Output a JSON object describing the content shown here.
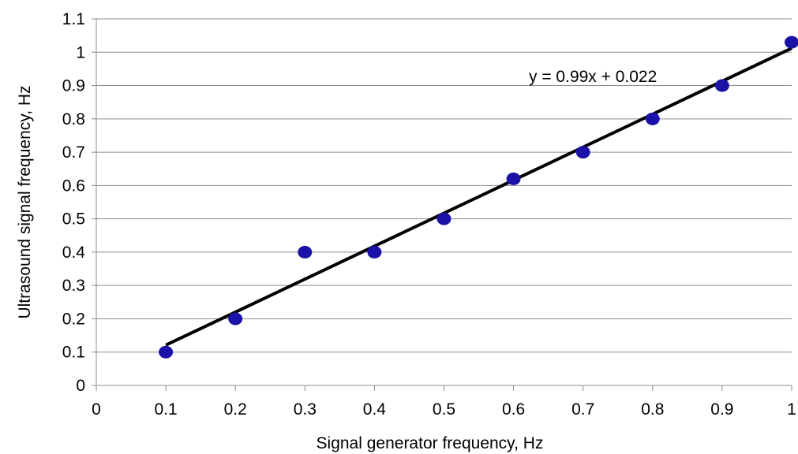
{
  "chart_data": {
    "type": "scatter",
    "xlabel": "Signal generator  frequency, Hz",
    "ylabel": "Ultrasound  signal frequency, Hz",
    "xlim": [
      0,
      1
    ],
    "ylim": [
      0,
      1.1
    ],
    "xticks": [
      "0",
      "0.1",
      "0.2",
      "0.3",
      "0.4",
      "0.5",
      "0.6",
      "0.7",
      "0.8",
      "0.9",
      "1"
    ],
    "yticks": [
      "0",
      "0.1",
      "0.2",
      "0.3",
      "0.4",
      "0.5",
      "0.6",
      "0.7",
      "0.8",
      "0.9",
      "1",
      "1.1"
    ],
    "grid": "horizontal",
    "points": [
      {
        "x": 0.1,
        "y": 0.1
      },
      {
        "x": 0.2,
        "y": 0.2
      },
      {
        "x": 0.3,
        "y": 0.4
      },
      {
        "x": 0.4,
        "y": 0.4
      },
      {
        "x": 0.5,
        "y": 0.5
      },
      {
        "x": 0.6,
        "y": 0.62
      },
      {
        "x": 0.7,
        "y": 0.7
      },
      {
        "x": 0.8,
        "y": 0.8
      },
      {
        "x": 0.9,
        "y": 0.9
      },
      {
        "x": 1.0,
        "y": 1.03
      }
    ],
    "point_color": "#1a12a6",
    "trendline": {
      "slope": 0.99,
      "intercept": 0.022,
      "x_range": [
        0.1,
        1.0
      ],
      "color": "#000000",
      "equation": "y = 0.99x + 0.022"
    }
  }
}
